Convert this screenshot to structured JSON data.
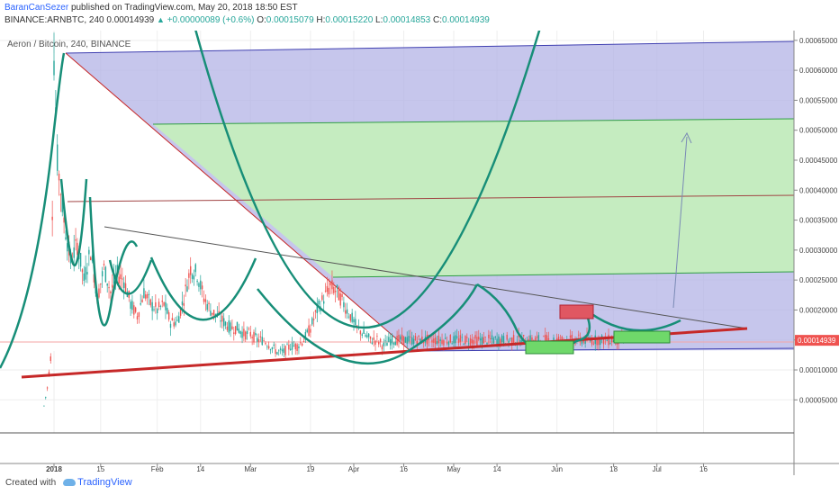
{
  "header": {
    "author": "BaranCanSezer",
    "published": "published on TradingView.com, May 20, 2018 18:50 EST",
    "symbol": "BINANCE:ARNBTC, 240",
    "last": "0.00014939",
    "change": "+0.00000089 (+0.6%)",
    "o_label": "O:",
    "o": "0.00015079",
    "h_label": "H:",
    "h": "0.00015220",
    "l_label": "L:",
    "l": "0.00014853",
    "c_label": "C:",
    "c": "0.00014939"
  },
  "footer": {
    "created_with": "Created with",
    "brand": "TradingView"
  },
  "colors": {
    "candle_up": "#26a69a",
    "candle_down": "#ef5350",
    "arc": "#178e78",
    "blue_zone": "#b3b3e6",
    "green_zone": "#c5ecc0",
    "support": "#c62828",
    "grid": "#eeeeee"
  },
  "chart_data": {
    "type": "candlestick",
    "title": "Aeron / Bitcoin, 240, BINANCE",
    "xlabel": "",
    "ylabel": "",
    "ylim": [
      0,
      0.00067
    ],
    "grid": true,
    "x_ticks": [
      "2018",
      "15",
      "Feb",
      "14",
      "Mar",
      "19",
      "Apr",
      "16",
      "May",
      "14",
      "Jun",
      "18",
      "Jul",
      "16"
    ],
    "y_ticks": [
      "0.00065000",
      "0.00060000",
      "0.00055000",
      "0.00050000",
      "0.00045000",
      "0.00040000",
      "0.00035000",
      "0.00030000",
      "0.00025000",
      "0.00020000",
      "0.00015000",
      "0.00010000",
      "0.00005000"
    ],
    "y_tick_values": [
      0.00065,
      0.0006,
      0.00055,
      0.0005,
      0.00045,
      0.0004,
      0.00035,
      0.0003,
      0.00025,
      0.0002,
      0.00015,
      0.0001,
      5e-05
    ],
    "price_path_x": [
      -3,
      -2,
      -1,
      0,
      1,
      2,
      3,
      5,
      7,
      9,
      11,
      13,
      15,
      17,
      19,
      21,
      23,
      25,
      27,
      29,
      31,
      33,
      35,
      37,
      39,
      41,
      43,
      45,
      47,
      49,
      51,
      53,
      55,
      57,
      59,
      61,
      63,
      65,
      67,
      69,
      71,
      73,
      75,
      77,
      79,
      81,
      83,
      85,
      87,
      89,
      91,
      93,
      95,
      97,
      99,
      101,
      103,
      105,
      107,
      109,
      111,
      113,
      115,
      117,
      119,
      121,
      123,
      125,
      127,
      129,
      131,
      133,
      135,
      137,
      139,
      141,
      143,
      145,
      147,
      149,
      151,
      153,
      155,
      157,
      159,
      161,
      163,
      165,
      167,
      169,
      171
    ],
    "price_path_y": [
      4e-05,
      7e-05,
      0.00012,
      0.00062,
      0.00045,
      0.0004,
      0.00035,
      0.00028,
      0.00031,
      0.00025,
      0.0003,
      0.00022,
      0.00027,
      0.00023,
      0.00026,
      0.00025,
      0.00021,
      0.00019,
      0.00023,
      0.00021,
      0.0002,
      0.00021,
      0.00018,
      0.00018,
      0.00022,
      0.00027,
      0.00026,
      0.00022,
      0.0002,
      0.00019,
      0.00018,
      0.00017,
      0.00017,
      0.00016,
      0.00016,
      0.00015,
      0.00015,
      0.00014,
      0.00013,
      0.00013,
      0.00014,
      0.00014,
      0.00015,
      0.00017,
      0.0002,
      0.00022,
      0.00024,
      0.00023,
      0.00021,
      0.00019,
      0.00017,
      0.00016,
      0.00015,
      0.00015,
      0.00014,
      0.00015,
      0.00015,
      0.00015,
      0.00015,
      0.00015,
      0.00015,
      0.00015,
      0.00015,
      0.00015,
      0.00015,
      0.00015,
      0.00015,
      0.00015,
      0.00015,
      0.00015,
      0.00015,
      0.00015,
      0.00015,
      0.00015,
      0.00015,
      0.00015,
      0.00015,
      0.00015,
      0.00015,
      0.00015,
      0.00015,
      0.00015,
      0.00015,
      0.00015,
      0.00015,
      0.00015,
      0.00015,
      0.00015,
      0.00015,
      0.00015,
      0.00015
    ],
    "last_price": 0.00014939
  }
}
